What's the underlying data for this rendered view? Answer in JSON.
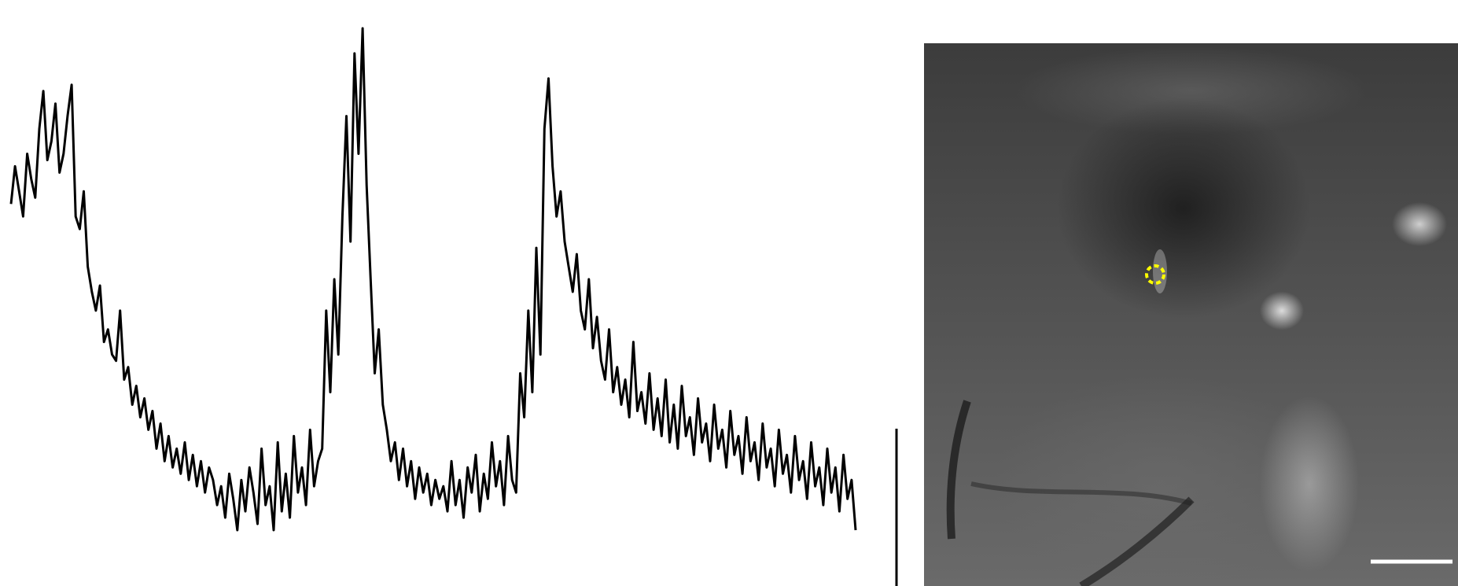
{
  "figure": {
    "trace_panel": {
      "description_free": true
    },
    "image_panel": {
      "roi_color": "#ffff00",
      "scale_bar_color": "#ffffff"
    }
  },
  "chart_data": {
    "type": "line",
    "title": "",
    "xlabel": "",
    "ylabel": "",
    "grid": false,
    "legend": "none",
    "series": [
      {
        "values": [
          72,
          78,
          74,
          70,
          80,
          76,
          73,
          84,
          90,
          79,
          82,
          88,
          77,
          80,
          86,
          91,
          70,
          68,
          74,
          62,
          58,
          55,
          59,
          50,
          52,
          48,
          47,
          55,
          44,
          46,
          40,
          43,
          38,
          41,
          36,
          39,
          33,
          37,
          31,
          35,
          30,
          33,
          29,
          34,
          28,
          32,
          27,
          31,
          26,
          30,
          28,
          24,
          27,
          22,
          29,
          25,
          20,
          28,
          23,
          30,
          26,
          21,
          33,
          24,
          27,
          20,
          34,
          23,
          29,
          22,
          35,
          26,
          30,
          24,
          36,
          27,
          31,
          33,
          55,
          42,
          60,
          48,
          70,
          86,
          66,
          96,
          80,
          100,
          75,
          60,
          45,
          52,
          40,
          36,
          31,
          34,
          28,
          33,
          27,
          31,
          25,
          30,
          26,
          29,
          24,
          28,
          25,
          27,
          23,
          31,
          24,
          28,
          22,
          30,
          26,
          32,
          23,
          29,
          25,
          34,
          27,
          31,
          24,
          35,
          28,
          26,
          45,
          38,
          55,
          42,
          65,
          48,
          84,
          92,
          78,
          70,
          74,
          66,
          62,
          58,
          64,
          55,
          52,
          60,
          49,
          54,
          47,
          44,
          52,
          42,
          46,
          40,
          44,
          38,
          50,
          39,
          42,
          37,
          45,
          36,
          41,
          35,
          44,
          34,
          40,
          33,
          43,
          35,
          38,
          32,
          41,
          34,
          37,
          31,
          40,
          33,
          36,
          30,
          39,
          32,
          35,
          29,
          38,
          31,
          34,
          28,
          37,
          30,
          33,
          27,
          36,
          29,
          32,
          26,
          35,
          28,
          31,
          25,
          34,
          27,
          30,
          24,
          33,
          26,
          30,
          23,
          32,
          25,
          28,
          20
        ]
      }
    ]
  }
}
